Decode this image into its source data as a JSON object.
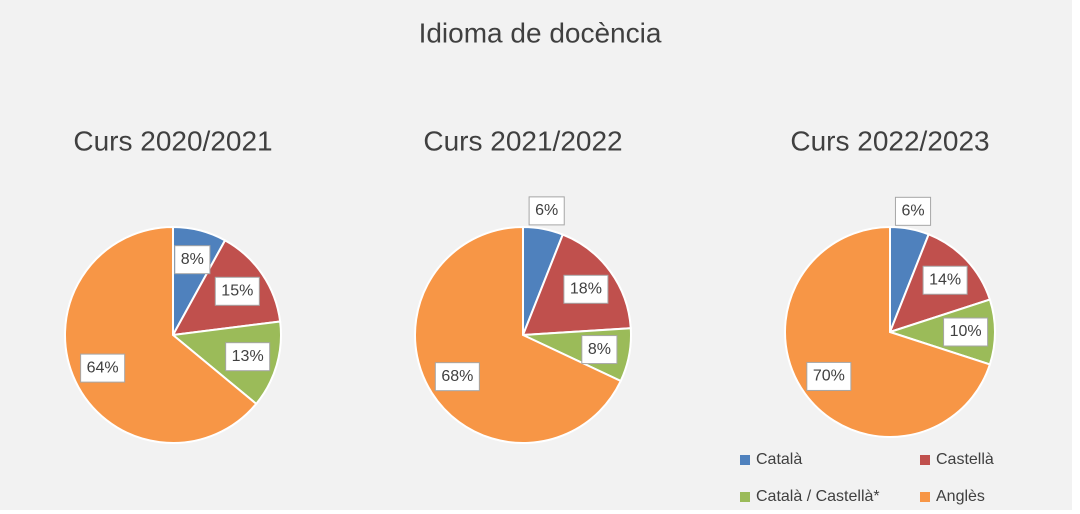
{
  "title": "Idioma de docència",
  "chart_data": [
    {
      "type": "pie",
      "title": "Curs 2020/2021",
      "categories": [
        "Català",
        "Castellà",
        "Català / Castellà*",
        "Anglès"
      ],
      "values": [
        8,
        15,
        13,
        64
      ],
      "value_labels": [
        "8%",
        "15%",
        "13%",
        "64%"
      ],
      "colors": [
        "#4f81bd",
        "#c0504d",
        "#9bbb59",
        "#f79646"
      ]
    },
    {
      "type": "pie",
      "title": "Curs 2021/2022",
      "categories": [
        "Català",
        "Castellà",
        "Català / Castellà*",
        "Anglès"
      ],
      "values": [
        6,
        18,
        8,
        68
      ],
      "value_labels": [
        "6%",
        "18%",
        "8%",
        "68%"
      ],
      "colors": [
        "#4f81bd",
        "#c0504d",
        "#9bbb59",
        "#f79646"
      ]
    },
    {
      "type": "pie",
      "title": "Curs 2022/2023",
      "categories": [
        "Català",
        "Castellà",
        "Català / Castellà*",
        "Anglès"
      ],
      "values": [
        6,
        14,
        10,
        70
      ],
      "value_labels": [
        "6%",
        "14%",
        "10%",
        "70%"
      ],
      "colors": [
        "#4f81bd",
        "#c0504d",
        "#9bbb59",
        "#f79646"
      ],
      "legend": "bottom"
    }
  ]
}
